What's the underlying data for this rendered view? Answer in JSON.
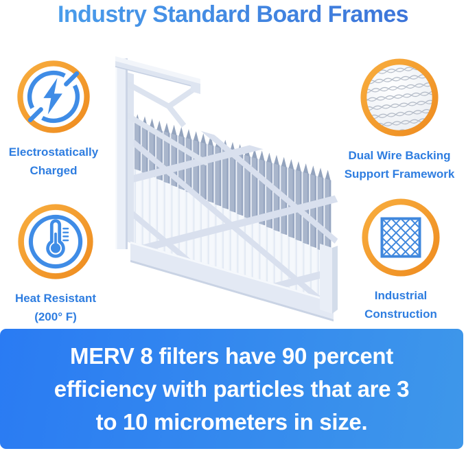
{
  "title": "Industry Standard Board Frames",
  "features": [
    {
      "id": "electrostatically-charged",
      "icon": "lightning-bolt-icon",
      "label_line1": "Electrostatically",
      "label_line2": "Charged"
    },
    {
      "id": "dual-wire-backing",
      "icon": "wire-mesh-icon",
      "label_line1": "Dual Wire Backing",
      "label_line2": "Support Framework"
    },
    {
      "id": "heat-resistant",
      "icon": "thermometer-icon",
      "label_line1": "Heat Resistant",
      "label_line2": "(200° F)"
    },
    {
      "id": "industrial-construction",
      "icon": "diamond-lattice-icon",
      "label_line1": "Industrial",
      "label_line2": "Construction"
    }
  ],
  "illustration": {
    "description": "White pleated air filter with board frame"
  },
  "banner": {
    "lines": [
      "MERV 8 filters have 90 percent",
      "efficiency with particles that are 3",
      "to 10 micrometers in size."
    ]
  },
  "colors": {
    "accent_orange": "#F49B2C",
    "icon_blue": "#3F8CE6",
    "label_blue": "#2E7DE0",
    "title_blue_left": "#4BA3EE",
    "title_blue_right": "#3A6ED6",
    "banner_blue_left": "#2A7BF3",
    "banner_blue_right": "#3E97EA",
    "banner_text": "#FFFFFF"
  }
}
